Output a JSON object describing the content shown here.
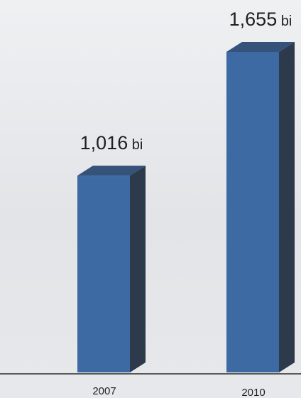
{
  "chart_data": {
    "type": "bar",
    "categories": [
      "2007",
      "2010"
    ],
    "values": [
      1.016,
      1.655
    ],
    "data_labels": [
      {
        "number": "1,016",
        "unit": "bi"
      },
      {
        "number": "1,655",
        "unit": "bi"
      }
    ],
    "title": "",
    "xlabel": "",
    "ylabel": "",
    "ylim": [
      0,
      1.655
    ],
    "grid": false,
    "style": "3d",
    "bar_color": "#3d6aa3",
    "bar_side_color": "#2c3a4c",
    "bar_top_color": "#34527a"
  }
}
